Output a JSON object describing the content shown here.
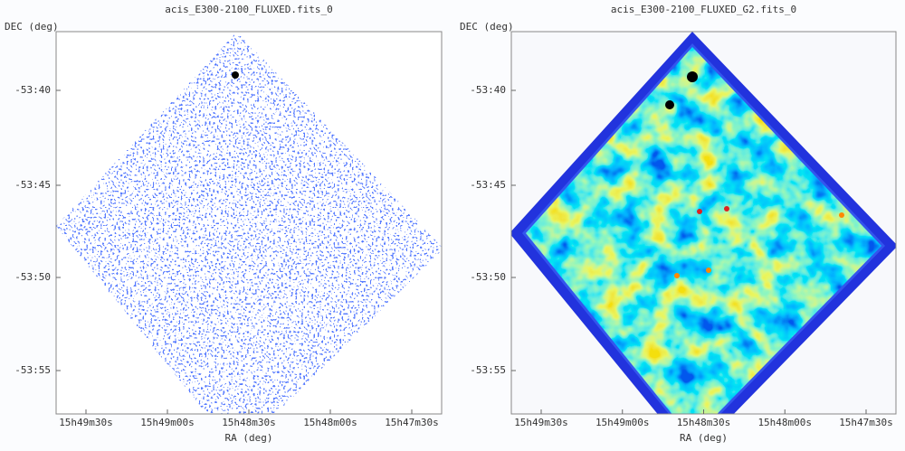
{
  "panels": [
    {
      "title": "acis_E300-2100_FLUXED.fits_0",
      "ylabel": "DEC (deg)",
      "xlabel": "RA (deg)",
      "yticks": [
        "-53:40",
        "-53:45",
        "-53:50",
        "-53:55"
      ],
      "xticks": [
        "15h49m30s",
        "15h49m00s",
        "15h48m30s",
        "15h48m00s",
        "15h47m30s"
      ]
    },
    {
      "title": "acis_E300-2100_FLUXED_G2.fits_0",
      "ylabel": "DEC (deg)",
      "xlabel": "RA (deg)",
      "yticks": [
        "-53:40",
        "-53:45",
        "-53:50",
        "-53:55"
      ],
      "xticks": [
        "15h49m30s",
        "15h49m00s",
        "15h48m30s",
        "15h48m00s",
        "15h47m30s"
      ]
    }
  ]
}
